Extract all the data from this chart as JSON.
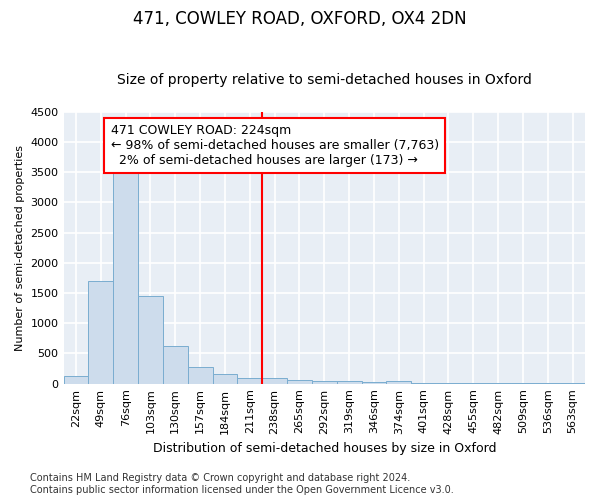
{
  "title": "471, COWLEY ROAD, OXFORD, OX4 2DN",
  "subtitle": "Size of property relative to semi-detached houses in Oxford",
  "xlabel": "Distribution of semi-detached houses by size in Oxford",
  "ylabel": "Number of semi-detached properties",
  "bar_color": "#cddcec",
  "bar_edge_color": "#7aadd0",
  "background_color": "#e8eef5",
  "grid_color": "#ffffff",
  "fig_background": "#ffffff",
  "categories": [
    "22sqm",
    "49sqm",
    "76sqm",
    "103sqm",
    "130sqm",
    "157sqm",
    "184sqm",
    "211sqm",
    "238sqm",
    "265sqm",
    "292sqm",
    "319sqm",
    "346sqm",
    "374sqm",
    "401sqm",
    "428sqm",
    "455sqm",
    "482sqm",
    "509sqm",
    "536sqm",
    "563sqm"
  ],
  "values": [
    120,
    1700,
    3500,
    1450,
    625,
    270,
    160,
    90,
    90,
    65,
    50,
    40,
    30,
    40,
    5,
    5,
    5,
    5,
    5,
    5,
    5
  ],
  "ylim": [
    0,
    4500
  ],
  "yticks": [
    0,
    500,
    1000,
    1500,
    2000,
    2500,
    3000,
    3500,
    4000,
    4500
  ],
  "pct_smaller": 98,
  "n_smaller": 7763,
  "pct_larger": 2,
  "n_larger": 173,
  "footer": "Contains HM Land Registry data © Crown copyright and database right 2024.\nContains public sector information licensed under the Open Government Licence v3.0.",
  "title_fontsize": 12,
  "subtitle_fontsize": 10,
  "tick_fontsize": 8,
  "ylabel_fontsize": 8,
  "xlabel_fontsize": 9,
  "ann_fontsize": 9,
  "footer_fontsize": 7
}
